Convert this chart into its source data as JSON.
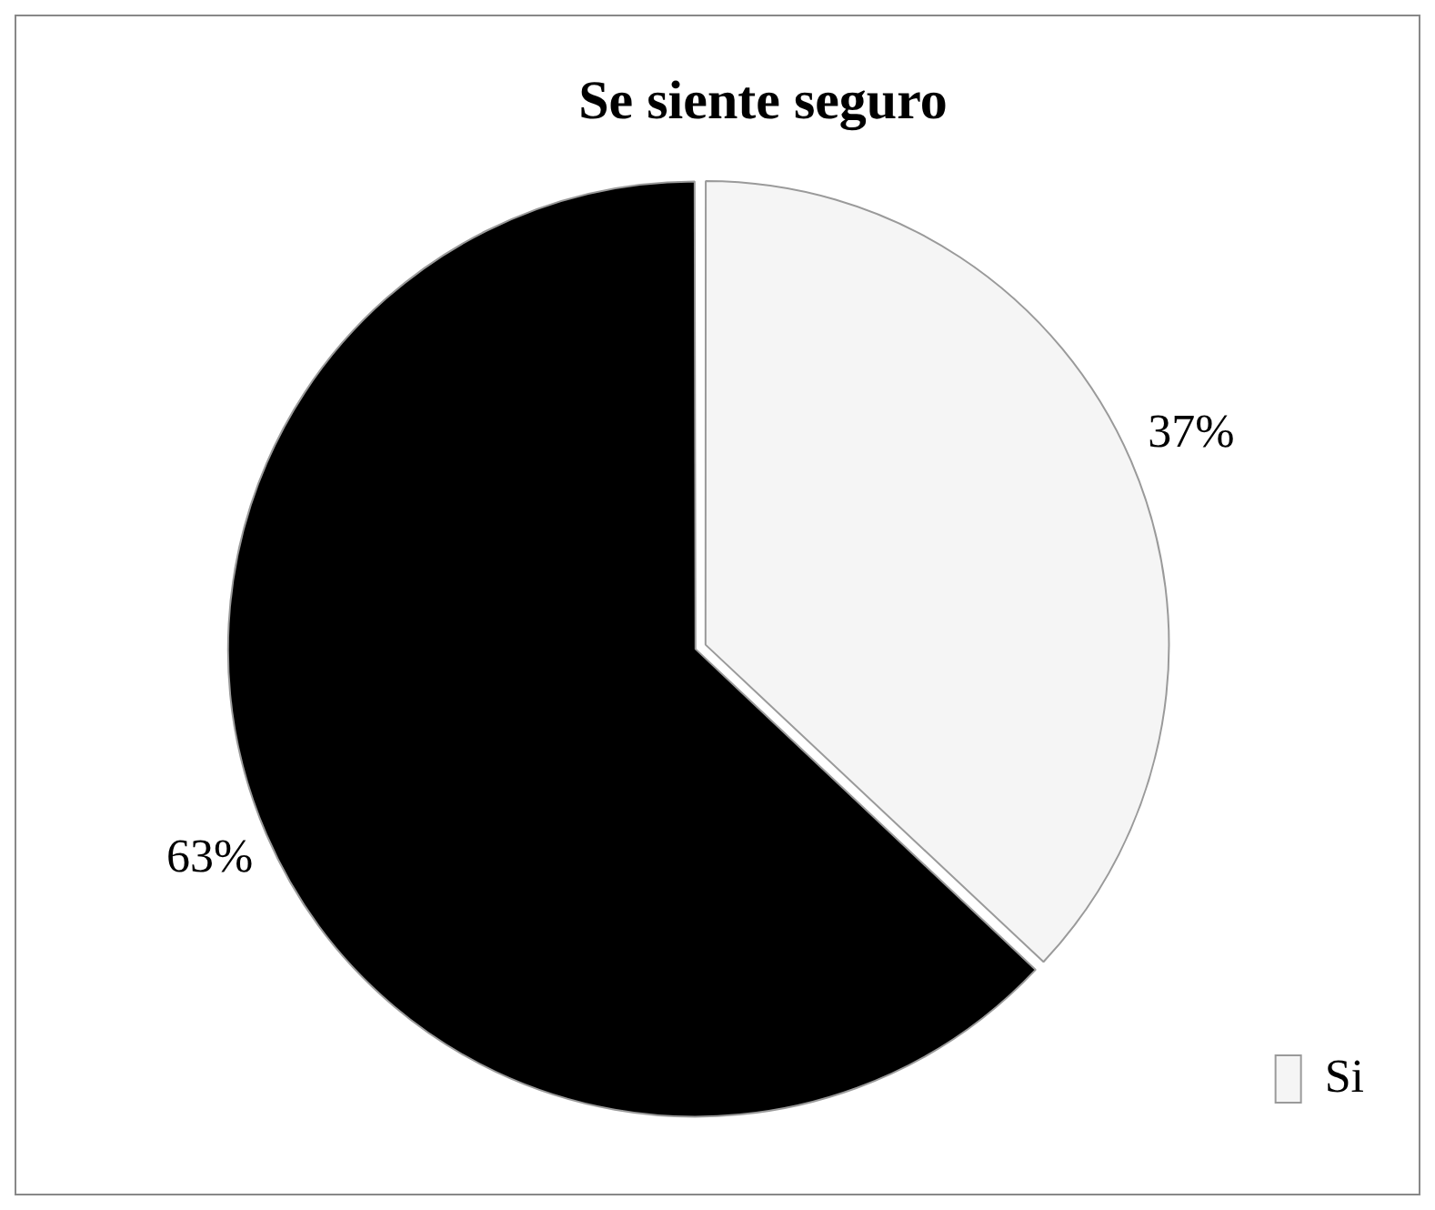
{
  "chart_data": {
    "type": "pie",
    "title": "Se siente seguro",
    "categories": [
      "Si",
      null
    ],
    "values": [
      37,
      63
    ],
    "colors": [
      "#f5f5f5",
      "#000000"
    ],
    "value_labels": [
      "37%",
      "63%"
    ],
    "legend": "bottom right"
  }
}
